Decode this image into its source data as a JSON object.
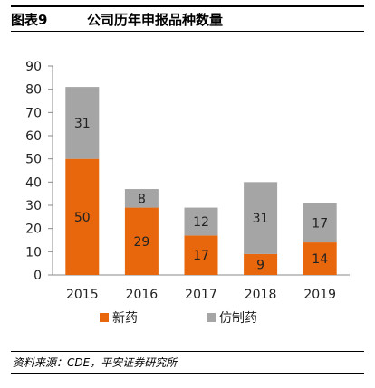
{
  "figure": {
    "label": "图表9",
    "title": "公司历年申报品种数量",
    "source": "资料来源：CDE，平安证券研究所"
  },
  "colors": {
    "new_drug": "#E8670C",
    "generic": "#A5A5A5"
  },
  "chart_data": {
    "type": "bar",
    "stacked": true,
    "categories": [
      "2015",
      "2016",
      "2017",
      "2018",
      "2019"
    ],
    "series": [
      {
        "name": "新药",
        "values": [
          50,
          29,
          17,
          9,
          14
        ]
      },
      {
        "name": "仿制药",
        "values": [
          31,
          8,
          12,
          31,
          17
        ]
      }
    ],
    "ylim": [
      0,
      90
    ],
    "yticks": [
      0,
      10,
      20,
      30,
      40,
      50,
      60,
      70,
      80,
      90
    ],
    "grid": false,
    "legend": "bottom"
  }
}
